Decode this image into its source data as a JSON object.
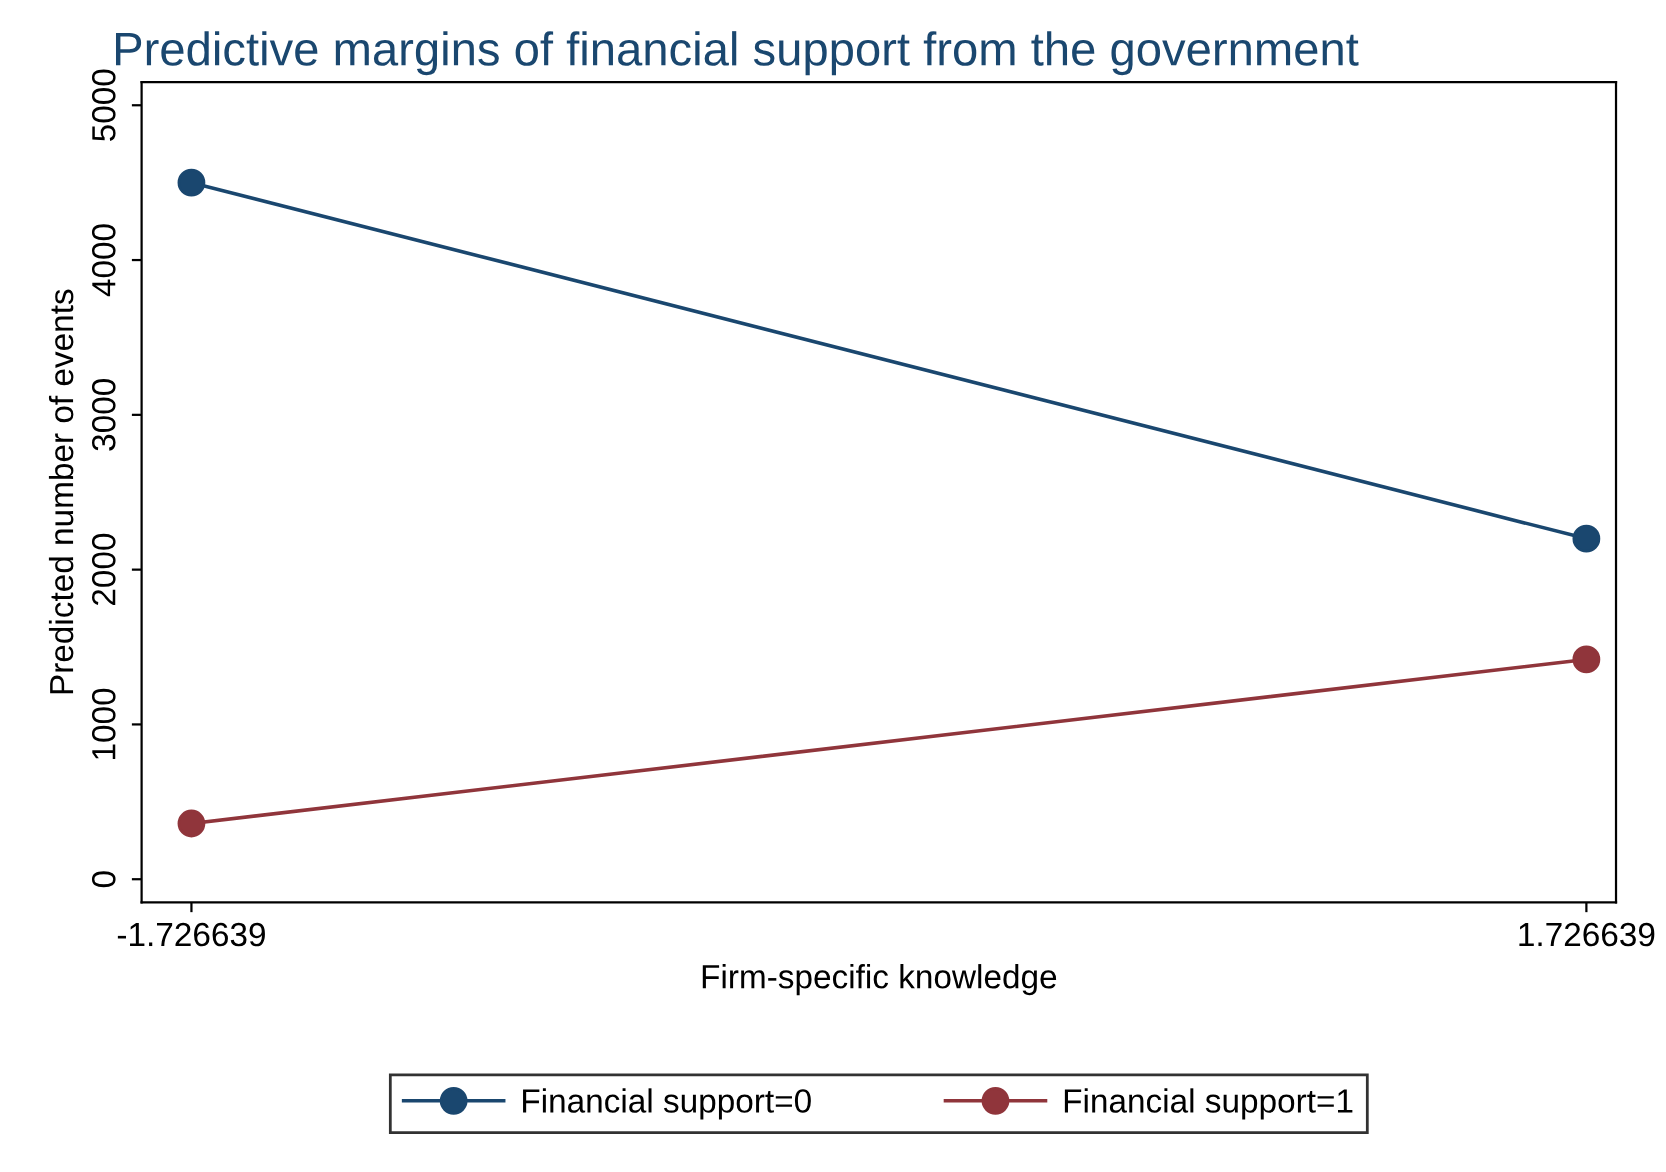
{
  "chart_data": {
    "type": "line",
    "title": "Predictive margins of financial support from the government",
    "xlabel": "Firm-specific knowledge",
    "ylabel": "Predicted number of events",
    "x": [
      -1.726639,
      1.726639
    ],
    "series": [
      {
        "name": "Financial support=0",
        "color": "#1a476f",
        "values": [
          4500,
          2200
        ]
      },
      {
        "name": "Financial support=1",
        "color": "#90353b",
        "values": [
          360,
          1420
        ]
      }
    ],
    "xlim": [
      -1.85,
      1.8
    ],
    "xticks": [
      -1.726639,
      1.726639
    ],
    "ylim": [
      -150,
      5150
    ],
    "yticks": [
      0,
      1000,
      2000,
      3000,
      4000,
      5000
    ],
    "grid": false,
    "legend": "bottom",
    "marker": "circle",
    "line_style": "solid"
  }
}
